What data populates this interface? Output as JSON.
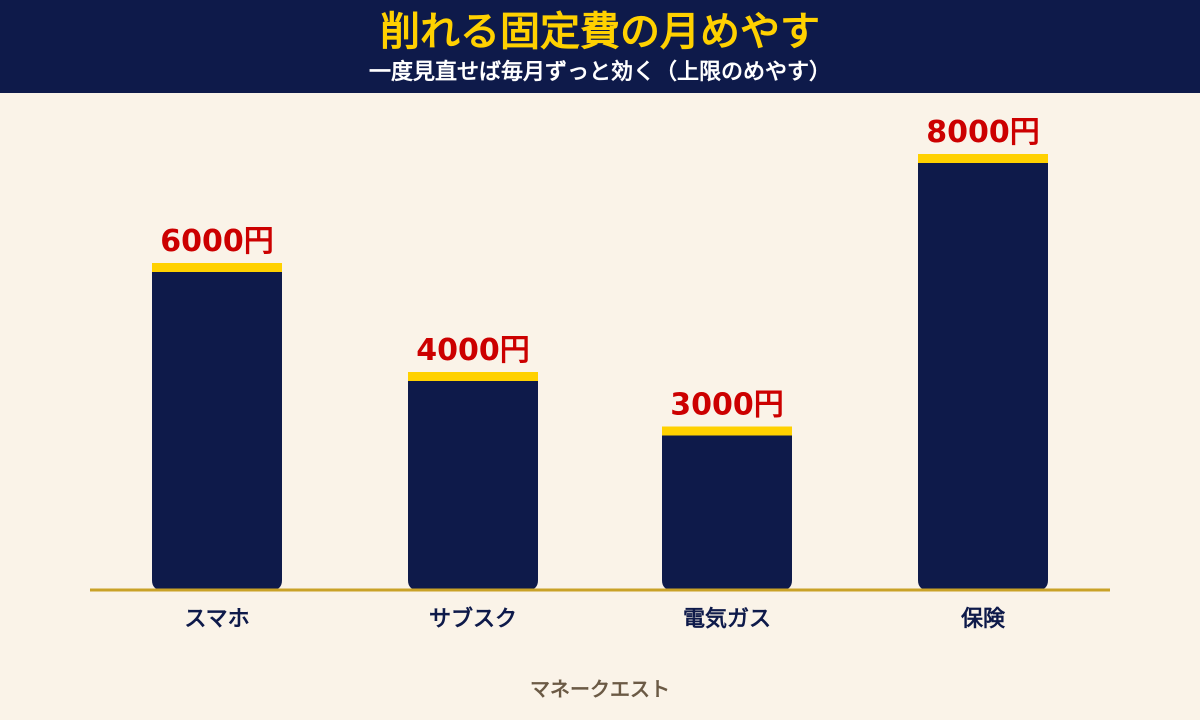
{
  "header": {
    "title": "削れる固定費の月めやす",
    "subtitle": "一度見直せば毎月ずっと効く（上限のめやす）"
  },
  "footer": {
    "source": "マネークエスト"
  },
  "colors": {
    "header_bg": "#0e1a4a",
    "title": "#ffd100",
    "bar": "#0e1a4a",
    "bar_cap": "#ffd100",
    "value_label": "#cc0000",
    "axis": "#c9a227",
    "category_label": "#0e1a4a",
    "background": "#faf3e8"
  },
  "chart_data": {
    "type": "bar",
    "categories": [
      "スマホ",
      "サブスク",
      "電気ガス",
      "保険"
    ],
    "values": [
      6000,
      4000,
      3000,
      8000
    ],
    "value_labels": [
      "6000円",
      "4000円",
      "3000円",
      "8000円"
    ],
    "ylim": [
      0,
      8000
    ],
    "xlabel": "",
    "ylabel": "",
    "grid": false,
    "legend": "none"
  }
}
